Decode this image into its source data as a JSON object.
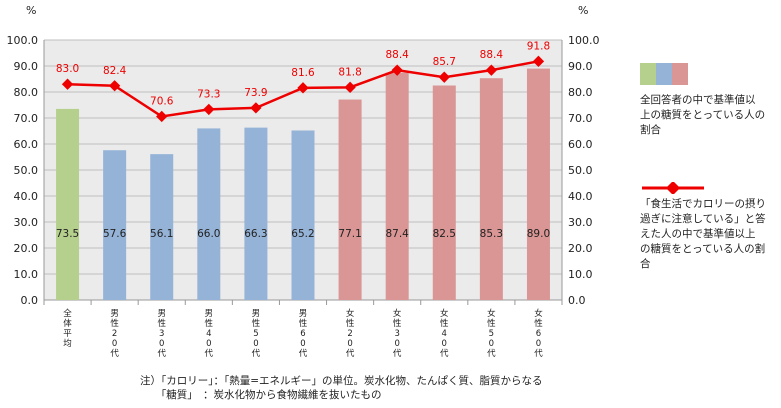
{
  "chart_data": {
    "type": "bar",
    "categories": [
      "全体平均",
      "男性20代",
      "男性30代",
      "男性40代",
      "男性50代",
      "男性60代",
      "女性20代",
      "女性30代",
      "女性40代",
      "女性50代",
      "女性60代"
    ],
    "bar_values": [
      73.5,
      57.6,
      56.1,
      66.0,
      66.3,
      65.2,
      77.1,
      87.4,
      82.5,
      85.3,
      89.0
    ],
    "bar_value_labels": [
      "73.5",
      "57.6",
      "56.1",
      "66.0",
      "66.3",
      "65.2",
      "77.1",
      "87.4",
      "82.5",
      "85.3",
      "89.0"
    ],
    "line_values": [
      83.0,
      82.4,
      70.6,
      73.3,
      73.9,
      81.6,
      81.8,
      88.4,
      85.7,
      88.4,
      91.8
    ],
    "line_value_labels": [
      "83.0",
      "82.4",
      "70.6",
      "73.3",
      "73.9",
      "81.6",
      "81.8",
      "88.4",
      "85.7",
      "88.4",
      "91.8"
    ],
    "ylim": [
      0,
      100
    ],
    "y_ticks": [
      "0.0",
      "10.0",
      "20.0",
      "30.0",
      "40.0",
      "50.0",
      "60.0",
      "70.0",
      "80.0",
      "90.0",
      "100.0"
    ],
    "ylabel_left": "%",
    "ylabel_right": "%",
    "grid": true,
    "colors": {
      "overall": "#b5cf8c",
      "male": "#95b3d7",
      "female": "#d99694",
      "line": "#ee0000",
      "grid": "#bfbfbf",
      "plot_bg": "#ebebeb"
    },
    "series": [
      {
        "name": "全回答者の中で基準値以上の糖質をとっている人の割合",
        "kind": "bar"
      },
      {
        "name": "「食生活でカロリーの摂り過ぎに注意している」と答えた人の中で基準値以上の糖質をとっている人の割合",
        "kind": "line"
      }
    ]
  },
  "legend": {
    "bar_text": "全回答者の中で基準値以\n上の糖質をとっている人の\n割合",
    "line_text": "「食生活でカロリーの摂り\n過ぎに注意している」と答\nえた人の中で基準値以上\nの糖質をとっている人の割\n合"
  },
  "notes": {
    "line1": "注）「カロリー」：「熱量=エネルギー」の単位。炭水化物、たんぱく質、脂質からなる",
    "line2": "　　「糖質」　：炭水化物から食物繊維を抜いたもの"
  }
}
